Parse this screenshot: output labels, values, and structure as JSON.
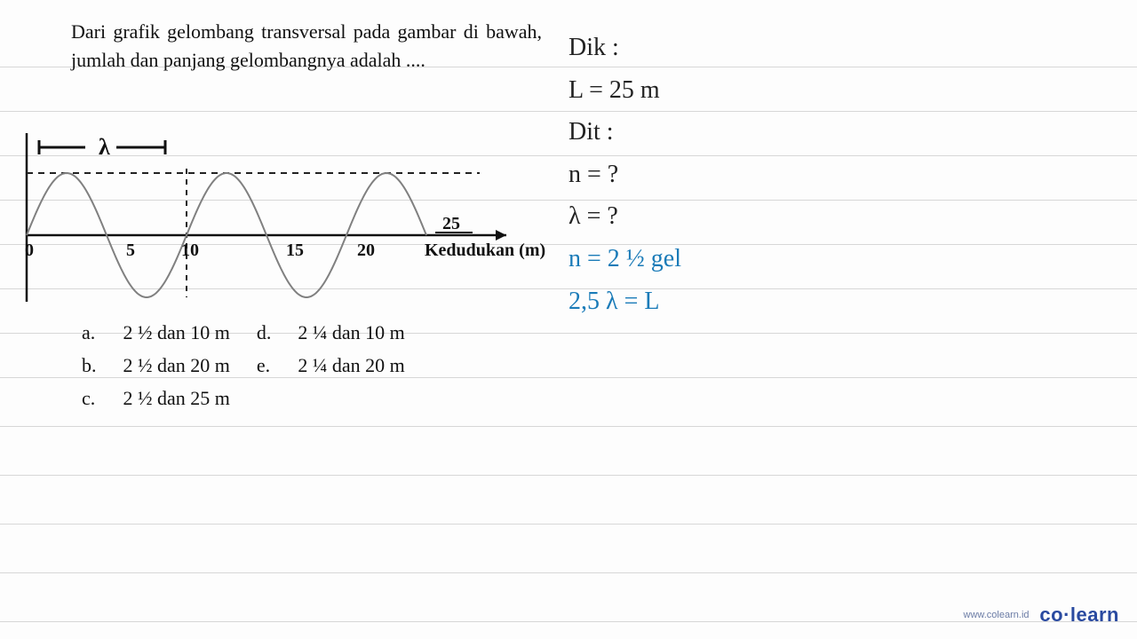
{
  "question": {
    "text": "Dari grafik gelombang transversal pada gambar di bawah, jumlah dan panjang gelombangnya adalah ....",
    "font_size_pt": 22,
    "text_color": "#111111"
  },
  "wave_chart": {
    "type": "line",
    "x_values": [
      0,
      1,
      2,
      3,
      4,
      5,
      6,
      7,
      8,
      9,
      10,
      11,
      12,
      13,
      14,
      15,
      16,
      17,
      18,
      19,
      20,
      21,
      22,
      23,
      24,
      25
    ],
    "amplitude": 1,
    "wavelength": 10,
    "axis_ticks": [
      0,
      5,
      10,
      15,
      20,
      25
    ],
    "axis_label": "Kedudukan (m)",
    "lambda_label": "λ",
    "arrow25_label": "25",
    "line_color": "#808080",
    "line_width": 2,
    "axis_color": "#111111",
    "dashed_color": "#222222",
    "background_color": "#ffffff",
    "xlim": [
      0,
      25
    ],
    "ylim": [
      -1.2,
      1.2
    ]
  },
  "options": {
    "a": "2 ½ dan 10 m",
    "b": "2 ½ dan 20 m",
    "c": "2 ½ dan 25 m",
    "d": "2 ¼ dan 10 m",
    "e": "2 ¼ dan 20 m"
  },
  "handwriting": {
    "dik_heading": "Dik :",
    "L_line": "L = 25 m",
    "dit_heading": "Dit :",
    "n_q": "n =  ?",
    "lambda_q": "λ =  ?",
    "n_ans": "n = 2 ½ gel",
    "eq_line": "2,5 λ = L",
    "black_color": "#222222",
    "blue_color": "#1a7bb8",
    "font_size_pt": 28
  },
  "ruled_lines": {
    "color": "#d7d7d7",
    "y_positions": [
      75,
      125,
      175,
      225,
      275,
      325,
      375,
      425,
      480,
      535,
      590,
      645,
      700
    ]
  },
  "footer": {
    "url": "www.colearn.id",
    "brand": "co·learn",
    "color": "#2a4aa0"
  }
}
